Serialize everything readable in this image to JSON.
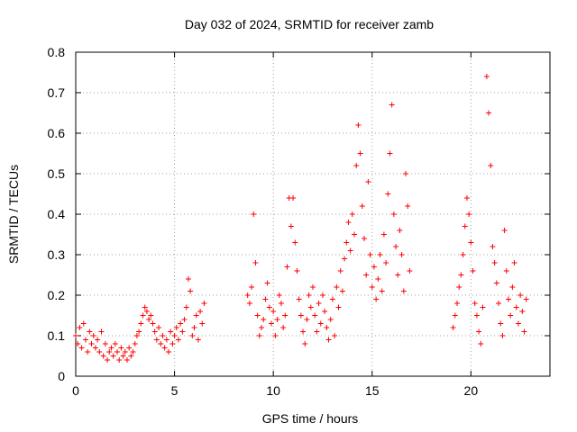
{
  "chart_data": {
    "type": "scatter",
    "title": "Day 032 of 2024, SRMTID for receiver zamb",
    "xlabel": "GPS time / hours",
    "ylabel": "SRMTID / TECUs",
    "xlim": [
      0,
      24
    ],
    "ylim": [
      0,
      0.8
    ],
    "xticks": [
      0,
      5,
      10,
      15,
      20
    ],
    "xtick_labels": [
      "0",
      "5",
      "10",
      "15",
      "20"
    ],
    "yticks": [
      0,
      0.1,
      0.2,
      0.3,
      0.4,
      0.5,
      0.6,
      0.7,
      0.8
    ],
    "ytick_labels": [
      "0",
      "0.1",
      "0.2",
      "0.3",
      "0.4",
      "0.5",
      "0.6",
      "0.7",
      "0.8"
    ],
    "grid": true,
    "marker": "plus",
    "color": "#ff0000",
    "series": [
      {
        "name": "SRMTID",
        "points": [
          [
            0.0,
            0.1
          ],
          [
            0.1,
            0.08
          ],
          [
            0.2,
            0.12
          ],
          [
            0.3,
            0.07
          ],
          [
            0.4,
            0.13
          ],
          [
            0.5,
            0.09
          ],
          [
            0.6,
            0.06
          ],
          [
            0.7,
            0.11
          ],
          [
            0.8,
            0.08
          ],
          [
            0.9,
            0.1
          ],
          [
            1.0,
            0.07
          ],
          [
            1.1,
            0.09
          ],
          [
            1.2,
            0.06
          ],
          [
            1.3,
            0.11
          ],
          [
            1.4,
            0.05
          ],
          [
            1.5,
            0.08
          ],
          [
            1.6,
            0.04
          ],
          [
            1.7,
            0.06
          ],
          [
            1.8,
            0.07
          ],
          [
            1.9,
            0.05
          ],
          [
            2.0,
            0.08
          ],
          [
            2.1,
            0.06
          ],
          [
            2.2,
            0.04
          ],
          [
            2.3,
            0.07
          ],
          [
            2.4,
            0.05
          ],
          [
            2.5,
            0.06
          ],
          [
            2.6,
            0.04
          ],
          [
            2.7,
            0.07
          ],
          [
            2.8,
            0.05
          ],
          [
            2.9,
            0.06
          ],
          [
            3.0,
            0.08
          ],
          [
            3.1,
            0.1
          ],
          [
            3.2,
            0.11
          ],
          [
            3.3,
            0.13
          ],
          [
            3.4,
            0.15
          ],
          [
            3.5,
            0.17
          ],
          [
            3.6,
            0.16
          ],
          [
            3.7,
            0.14
          ],
          [
            3.8,
            0.15
          ],
          [
            3.9,
            0.13
          ],
          [
            4.0,
            0.11
          ],
          [
            4.1,
            0.09
          ],
          [
            4.2,
            0.12
          ],
          [
            4.3,
            0.08
          ],
          [
            4.4,
            0.1
          ],
          [
            4.5,
            0.07
          ],
          [
            4.6,
            0.09
          ],
          [
            4.7,
            0.06
          ],
          [
            4.8,
            0.11
          ],
          [
            4.9,
            0.08
          ],
          [
            5.0,
            0.1
          ],
          [
            5.1,
            0.12
          ],
          [
            5.2,
            0.09
          ],
          [
            5.3,
            0.13
          ],
          [
            5.4,
            0.11
          ],
          [
            5.5,
            0.14
          ],
          [
            5.6,
            0.17
          ],
          [
            5.7,
            0.24
          ],
          [
            5.8,
            0.21
          ],
          [
            5.9,
            0.1
          ],
          [
            6.0,
            0.12
          ],
          [
            6.1,
            0.15
          ],
          [
            6.2,
            0.09
          ],
          [
            6.3,
            0.16
          ],
          [
            6.4,
            0.13
          ],
          [
            6.5,
            0.18
          ],
          [
            8.7,
            0.2
          ],
          [
            8.8,
            0.18
          ],
          [
            8.9,
            0.22
          ],
          [
            9.0,
            0.4
          ],
          [
            9.1,
            0.28
          ],
          [
            9.2,
            0.15
          ],
          [
            9.3,
            0.1
          ],
          [
            9.4,
            0.12
          ],
          [
            9.5,
            0.14
          ],
          [
            9.6,
            0.19
          ],
          [
            9.7,
            0.23
          ],
          [
            9.8,
            0.17
          ],
          [
            9.9,
            0.13
          ],
          [
            10.0,
            0.16
          ],
          [
            10.1,
            0.1
          ],
          [
            10.2,
            0.14
          ],
          [
            10.3,
            0.2
          ],
          [
            10.4,
            0.18
          ],
          [
            10.5,
            0.12
          ],
          [
            10.6,
            0.15
          ],
          [
            10.7,
            0.27
          ],
          [
            10.8,
            0.44
          ],
          [
            10.9,
            0.37
          ],
          [
            11.0,
            0.44
          ],
          [
            11.1,
            0.33
          ],
          [
            11.2,
            0.26
          ],
          [
            11.3,
            0.19
          ],
          [
            11.4,
            0.15
          ],
          [
            11.5,
            0.11
          ],
          [
            11.6,
            0.08
          ],
          [
            11.7,
            0.14
          ],
          [
            11.8,
            0.2
          ],
          [
            11.9,
            0.17
          ],
          [
            12.0,
            0.22
          ],
          [
            12.1,
            0.15
          ],
          [
            12.2,
            0.11
          ],
          [
            12.3,
            0.18
          ],
          [
            12.4,
            0.13
          ],
          [
            12.5,
            0.2
          ],
          [
            12.6,
            0.16
          ],
          [
            12.7,
            0.12
          ],
          [
            12.8,
            0.09
          ],
          [
            12.9,
            0.14
          ],
          [
            13.0,
            0.19
          ],
          [
            13.1,
            0.1
          ],
          [
            13.2,
            0.22
          ],
          [
            13.3,
            0.17
          ],
          [
            13.4,
            0.26
          ],
          [
            13.5,
            0.21
          ],
          [
            13.6,
            0.29
          ],
          [
            13.7,
            0.33
          ],
          [
            13.8,
            0.38
          ],
          [
            13.9,
            0.31
          ],
          [
            14.0,
            0.4
          ],
          [
            14.1,
            0.35
          ],
          [
            14.2,
            0.52
          ],
          [
            14.3,
            0.62
          ],
          [
            14.4,
            0.55
          ],
          [
            14.5,
            0.42
          ],
          [
            14.6,
            0.34
          ],
          [
            14.7,
            0.25
          ],
          [
            14.8,
            0.48
          ],
          [
            14.9,
            0.3
          ],
          [
            15.0,
            0.22
          ],
          [
            15.1,
            0.27
          ],
          [
            15.2,
            0.19
          ],
          [
            15.3,
            0.24
          ],
          [
            15.4,
            0.3
          ],
          [
            15.5,
            0.21
          ],
          [
            15.6,
            0.35
          ],
          [
            15.7,
            0.28
          ],
          [
            15.8,
            0.45
          ],
          [
            15.9,
            0.55
          ],
          [
            16.0,
            0.67
          ],
          [
            16.1,
            0.4
          ],
          [
            16.2,
            0.32
          ],
          [
            16.3,
            0.25
          ],
          [
            16.4,
            0.36
          ],
          [
            16.5,
            0.3
          ],
          [
            16.6,
            0.21
          ],
          [
            16.7,
            0.5
          ],
          [
            16.8,
            0.42
          ],
          [
            16.9,
            0.26
          ],
          [
            19.1,
            0.12
          ],
          [
            19.2,
            0.15
          ],
          [
            19.3,
            0.18
          ],
          [
            19.4,
            0.22
          ],
          [
            19.5,
            0.25
          ],
          [
            19.6,
            0.3
          ],
          [
            19.7,
            0.37
          ],
          [
            19.8,
            0.44
          ],
          [
            19.9,
            0.4
          ],
          [
            20.0,
            0.33
          ],
          [
            20.1,
            0.26
          ],
          [
            20.2,
            0.18
          ],
          [
            20.3,
            0.15
          ],
          [
            20.4,
            0.11
          ],
          [
            20.5,
            0.08
          ],
          [
            20.6,
            0.17
          ],
          [
            20.8,
            0.74
          ],
          [
            20.9,
            0.65
          ],
          [
            21.0,
            0.52
          ],
          [
            21.1,
            0.32
          ],
          [
            21.2,
            0.28
          ],
          [
            21.3,
            0.23
          ],
          [
            21.4,
            0.18
          ],
          [
            21.5,
            0.13
          ],
          [
            21.6,
            0.1
          ],
          [
            21.7,
            0.36
          ],
          [
            21.8,
            0.26
          ],
          [
            21.9,
            0.19
          ],
          [
            22.0,
            0.15
          ],
          [
            22.1,
            0.22
          ],
          [
            22.2,
            0.28
          ],
          [
            22.3,
            0.17
          ],
          [
            22.4,
            0.13
          ],
          [
            22.5,
            0.2
          ],
          [
            22.6,
            0.16
          ],
          [
            22.7,
            0.11
          ],
          [
            22.8,
            0.19
          ]
        ]
      }
    ]
  }
}
